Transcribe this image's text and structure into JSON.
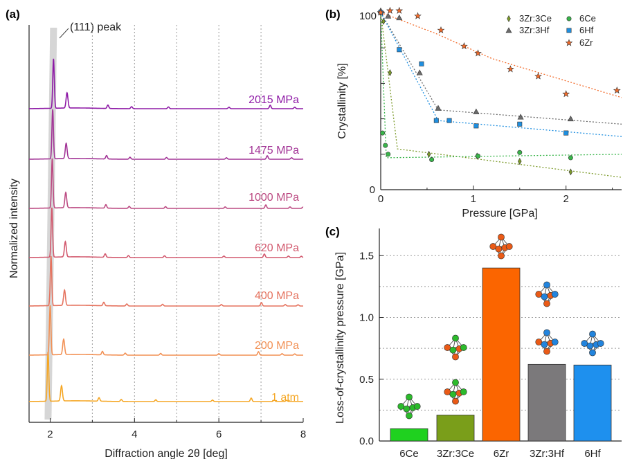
{
  "chart_data": [
    {
      "panel": "(a)",
      "type": "line",
      "xlabel": "Diffraction angle 2θ [deg]",
      "ylabel": "Normalized intensity",
      "xlim": [
        1.5,
        8
      ],
      "xticks": [
        "2",
        "4",
        "6",
        "8"
      ],
      "annotation": "(111) peak",
      "grid": "vertical dotted",
      "series": [
        {
          "name": "1 atm",
          "color": "#f5a623"
        },
        {
          "name": "200 MPa",
          "color": "#f29054"
        },
        {
          "name": "400 MPa",
          "color": "#e5735f"
        },
        {
          "name": "620 MPa",
          "color": "#d2596e"
        },
        {
          "name": "1000 MPa",
          "color": "#bc4a82"
        },
        {
          "name": "1475 MPa",
          "color": "#a23496"
        },
        {
          "name": "2015 MPa",
          "color": "#8e1aa6"
        }
      ],
      "peak_positions": [
        1.95,
        2.0,
        2.02,
        2.04,
        2.05,
        2.06,
        2.08
      ]
    },
    {
      "panel": "(b)",
      "type": "scatter",
      "xlabel": "Pressure [GPa]",
      "ylabel": "Crystallinity [%]",
      "xlim": [
        0,
        2.6
      ],
      "ylim": [
        0,
        100
      ],
      "xticks": [
        "0",
        "1",
        "2"
      ],
      "yticks": [
        "0",
        "100"
      ],
      "legend": "top-right",
      "series": [
        {
          "name": "3Zr:3Ce",
          "marker": "diamond",
          "color": "#7c9a2a",
          "x": [
            0.0,
            0.03,
            0.1,
            0.52,
            1.04,
            1.5,
            2.05
          ],
          "y": [
            100,
            95,
            66,
            20,
            19,
            16,
            10
          ],
          "fit": [
            [
              0,
              100
            ],
            [
              0.18,
              23
            ],
            [
              2.6,
              7
            ]
          ]
        },
        {
          "name": "6Ce",
          "marker": "circle",
          "color": "#39b54a",
          "x": [
            0.02,
            0.05,
            0.08,
            0.55,
            1.05,
            1.5,
            2.05
          ],
          "y": [
            32,
            25,
            20,
            17,
            19,
            21,
            18
          ],
          "fit": [
            [
              0,
              100
            ],
            [
              0.06,
              18
            ],
            [
              2.6,
              20
            ]
          ]
        },
        {
          "name": "3Zr:3Hf",
          "marker": "triangle",
          "color": "#6b6b6b",
          "x": [
            0.0,
            0.08,
            0.2,
            0.42,
            0.62,
            1.03,
            1.51,
            2.05
          ],
          "y": [
            101,
            98,
            97,
            66,
            46,
            44,
            41,
            40
          ],
          "fit": [
            [
              0,
              100
            ],
            [
              0.62,
              45
            ],
            [
              2.6,
              37
            ]
          ]
        },
        {
          "name": "6Hf",
          "marker": "square",
          "color": "#1f8fe0",
          "x": [
            0.0,
            0.2,
            0.44,
            0.6,
            0.74,
            1.03,
            1.5,
            2.0
          ],
          "y": [
            100,
            79,
            71,
            39,
            39,
            36,
            37,
            32
          ],
          "fit": [
            [
              0,
              100
            ],
            [
              0.62,
              39
            ],
            [
              2.6,
              30
            ]
          ]
        },
        {
          "name": "6Zr",
          "marker": "star",
          "color": "#f26b2a",
          "x": [
            0.0,
            0.1,
            0.2,
            0.4,
            0.65,
            0.9,
            1.05,
            1.4,
            1.7,
            2.0,
            2.55
          ],
          "y": [
            100,
            101,
            101,
            98,
            90,
            81,
            77,
            68,
            64,
            54,
            56
          ],
          "fit": [
            [
              0,
              100
            ],
            [
              0.6,
              88
            ],
            [
              1.2,
              74
            ],
            [
              2.6,
              52
            ]
          ]
        }
      ]
    },
    {
      "panel": "(c)",
      "type": "bar",
      "ylabel": "Loss-of-crystallinity pressure [GPa]",
      "categories": [
        "6Ce",
        "3Zr:3Ce",
        "6Zr",
        "3Zr:3Hf",
        "6Hf"
      ],
      "values": [
        0.1,
        0.21,
        1.4,
        0.62,
        0.615
      ],
      "colors": [
        "#1fd11f",
        "#7a9e1a",
        "#fb6500",
        "#7b797b",
        "#1e90ee"
      ],
      "ylim": [
        0,
        1.72
      ],
      "yticks": [
        "0.0",
        "0.5",
        "1.0",
        "1.5"
      ],
      "grid": "horizontal dotted"
    }
  ],
  "panels": {
    "a": "(a)",
    "b": "(b)",
    "c": "(c)"
  }
}
